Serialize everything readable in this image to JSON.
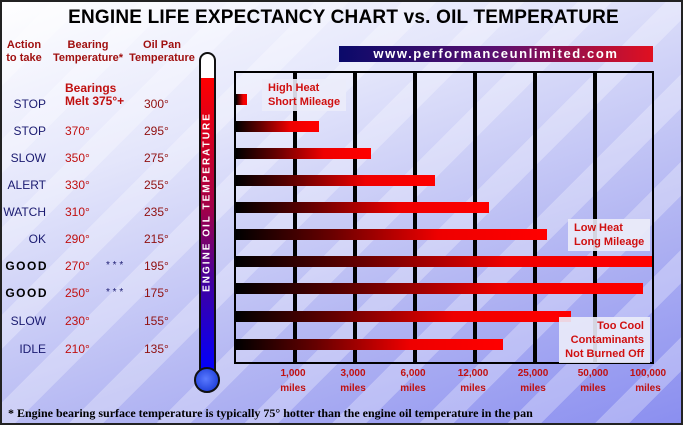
{
  "title": "ENGINE LIFE EXPECTANCY CHART vs. OIL TEMPERATURE",
  "url": "www.performanceunlimited.com",
  "headers": {
    "action": [
      "Action",
      "to take"
    ],
    "bearing": [
      "Bearing",
      "Temperature*"
    ],
    "pan": [
      "Oil Pan",
      "Temperature"
    ]
  },
  "melt": [
    "Bearings",
    "Melt 375°+"
  ],
  "thermometer_label": "ENGINE OIL TEMPERATURE",
  "rows": [
    {
      "action": "STOP",
      "bearing": "",
      "stars": "",
      "pan": "300°"
    },
    {
      "action": "STOP",
      "bearing": "370°",
      "stars": "",
      "pan": "295°"
    },
    {
      "action": "SLOW",
      "bearing": "350°",
      "stars": "",
      "pan": "275°"
    },
    {
      "action": "ALERT",
      "bearing": "330°",
      "stars": "",
      "pan": "255°"
    },
    {
      "action": "WATCH",
      "bearing": "310°",
      "stars": "",
      "pan": "235°"
    },
    {
      "action": "OK",
      "bearing": "290°",
      "stars": "",
      "pan": "215°"
    },
    {
      "action": "GOOD",
      "bearing": "270°",
      "stars": "* * *",
      "pan": "195°"
    },
    {
      "action": "GOOD",
      "bearing": "250°",
      "stars": "* * *",
      "pan": "175°"
    },
    {
      "action": "SLOW",
      "bearing": "230°",
      "stars": "",
      "pan": "155°"
    },
    {
      "action": "IDLE",
      "bearing": "210°",
      "stars": "",
      "pan": "135°"
    }
  ],
  "chart_data": {
    "type": "bar",
    "orientation": "horizontal",
    "title": "ENGINE LIFE EXPECTANCY CHART vs. OIL TEMPERATURE",
    "categories": [
      "300°",
      "295°",
      "275°",
      "255°",
      "235°",
      "215°",
      "195°",
      "175°",
      "155°",
      "135°"
    ],
    "values": [
      200,
      1800,
      3800,
      8000,
      15000,
      30000,
      100000,
      90000,
      40000,
      18000
    ],
    "xlabel": "miles",
    "x_ticks": [
      1000,
      3000,
      6000,
      12000,
      25000,
      50000,
      100000
    ],
    "x_tick_labels": [
      [
        "1,000",
        "miles"
      ],
      [
        "3,000",
        "miles"
      ],
      [
        "6,000",
        "miles"
      ],
      [
        "12,000",
        "miles"
      ],
      [
        "25,000",
        "miles"
      ],
      [
        "50,000",
        "miles"
      ],
      [
        "100,000",
        "miles"
      ]
    ],
    "annotations": [
      [
        "High Heat",
        "Short Mileage"
      ],
      [
        "Low Heat",
        "Long Mileage"
      ],
      [
        "Too Cool",
        "Contaminants",
        "Not Burned Off"
      ]
    ],
    "grid": true
  },
  "footnote": "* Engine bearing surface temperature is typically 75° hotter than the engine oil temperature in the pan",
  "colors": {
    "bar_start": "#000000",
    "bar_end": "#ff0000",
    "label_red": "#c01010",
    "action_blue": "#1a1a70"
  }
}
